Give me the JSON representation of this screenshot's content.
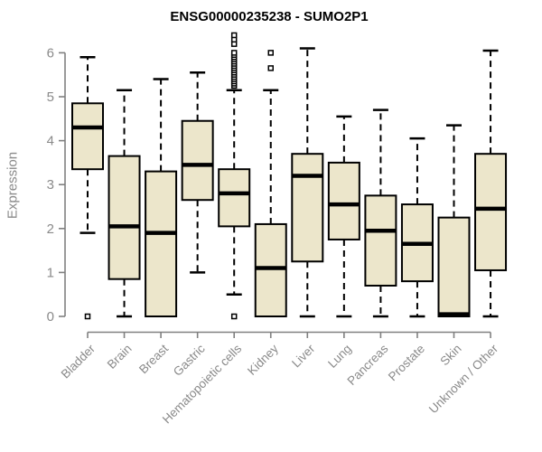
{
  "chart_data": {
    "type": "boxplot",
    "title": "ENSG00000235238 - SUMO2P1",
    "ylabel": "Expression",
    "ylim": [
      0,
      6.45
    ],
    "yticks": [
      0,
      1,
      2,
      3,
      4,
      5,
      6
    ],
    "grid": false,
    "legend": "none",
    "categories": [
      "Bladder",
      "Brain",
      "Breast",
      "Gastric",
      "Hematopoietic cells",
      "Kidney",
      "Liver",
      "Lung",
      "Pancreas",
      "Prostate",
      "Skin",
      "Unknown / Other"
    ],
    "boxes": [
      {
        "category": "Bladder",
        "whisker_low": 1.9,
        "q1": 3.35,
        "median": 4.3,
        "q3": 4.85,
        "whisker_high": 5.9,
        "outliers": [
          0.0
        ]
      },
      {
        "category": "Brain",
        "whisker_low": 0.0,
        "q1": 0.85,
        "median": 2.05,
        "q3": 3.65,
        "whisker_high": 5.15,
        "outliers": []
      },
      {
        "category": "Breast",
        "whisker_low": 0.0,
        "q1": 0.0,
        "median": 1.9,
        "q3": 3.3,
        "whisker_high": 5.4,
        "outliers": []
      },
      {
        "category": "Gastric",
        "whisker_low": 1.0,
        "q1": 2.65,
        "median": 3.45,
        "q3": 4.45,
        "whisker_high": 5.55,
        "outliers": []
      },
      {
        "category": "Hematopoietic cells",
        "whisker_low": 0.5,
        "q1": 2.05,
        "median": 2.8,
        "q3": 3.35,
        "whisker_high": 5.15,
        "outliers": [
          0.0,
          5.25,
          5.3,
          5.35,
          5.4,
          5.45,
          5.5,
          5.55,
          5.6,
          5.65,
          5.7,
          5.75,
          5.8,
          5.85,
          5.9,
          5.95,
          6.0,
          6.2,
          6.3,
          6.4
        ]
      },
      {
        "category": "Kidney",
        "whisker_low": 0.0,
        "q1": 0.0,
        "median": 1.1,
        "q3": 2.1,
        "whisker_high": 5.15,
        "outliers": [
          5.65,
          6.0
        ]
      },
      {
        "category": "Liver",
        "whisker_low": 0.0,
        "q1": 1.25,
        "median": 3.2,
        "q3": 3.7,
        "whisker_high": 6.1,
        "outliers": []
      },
      {
        "category": "Lung",
        "whisker_low": 0.0,
        "q1": 1.75,
        "median": 2.55,
        "q3": 3.5,
        "whisker_high": 4.55,
        "outliers": []
      },
      {
        "category": "Pancreas",
        "whisker_low": 0.0,
        "q1": 0.7,
        "median": 1.95,
        "q3": 2.75,
        "whisker_high": 4.7,
        "outliers": []
      },
      {
        "category": "Prostate",
        "whisker_low": 0.0,
        "q1": 0.8,
        "median": 1.65,
        "q3": 2.55,
        "whisker_high": 4.05,
        "outliers": []
      },
      {
        "category": "Skin",
        "whisker_low": 0.0,
        "q1": 0.0,
        "median": 0.05,
        "q3": 2.25,
        "whisker_high": 4.35,
        "outliers": []
      },
      {
        "category": "Unknown / Other",
        "whisker_low": 0.0,
        "q1": 1.05,
        "median": 2.45,
        "q3": 3.7,
        "whisker_high": 6.05,
        "outliers": []
      }
    ],
    "style": {
      "box_fill": "#ece6cb",
      "box_border": "#000000",
      "median_color": "#000000",
      "whisker_color": "#000000",
      "outlier_color": "#000000",
      "axis_color": "#808080",
      "tick_label_color": "#8a8a8a",
      "title_color": "#000000",
      "background": "#ffffff"
    }
  }
}
